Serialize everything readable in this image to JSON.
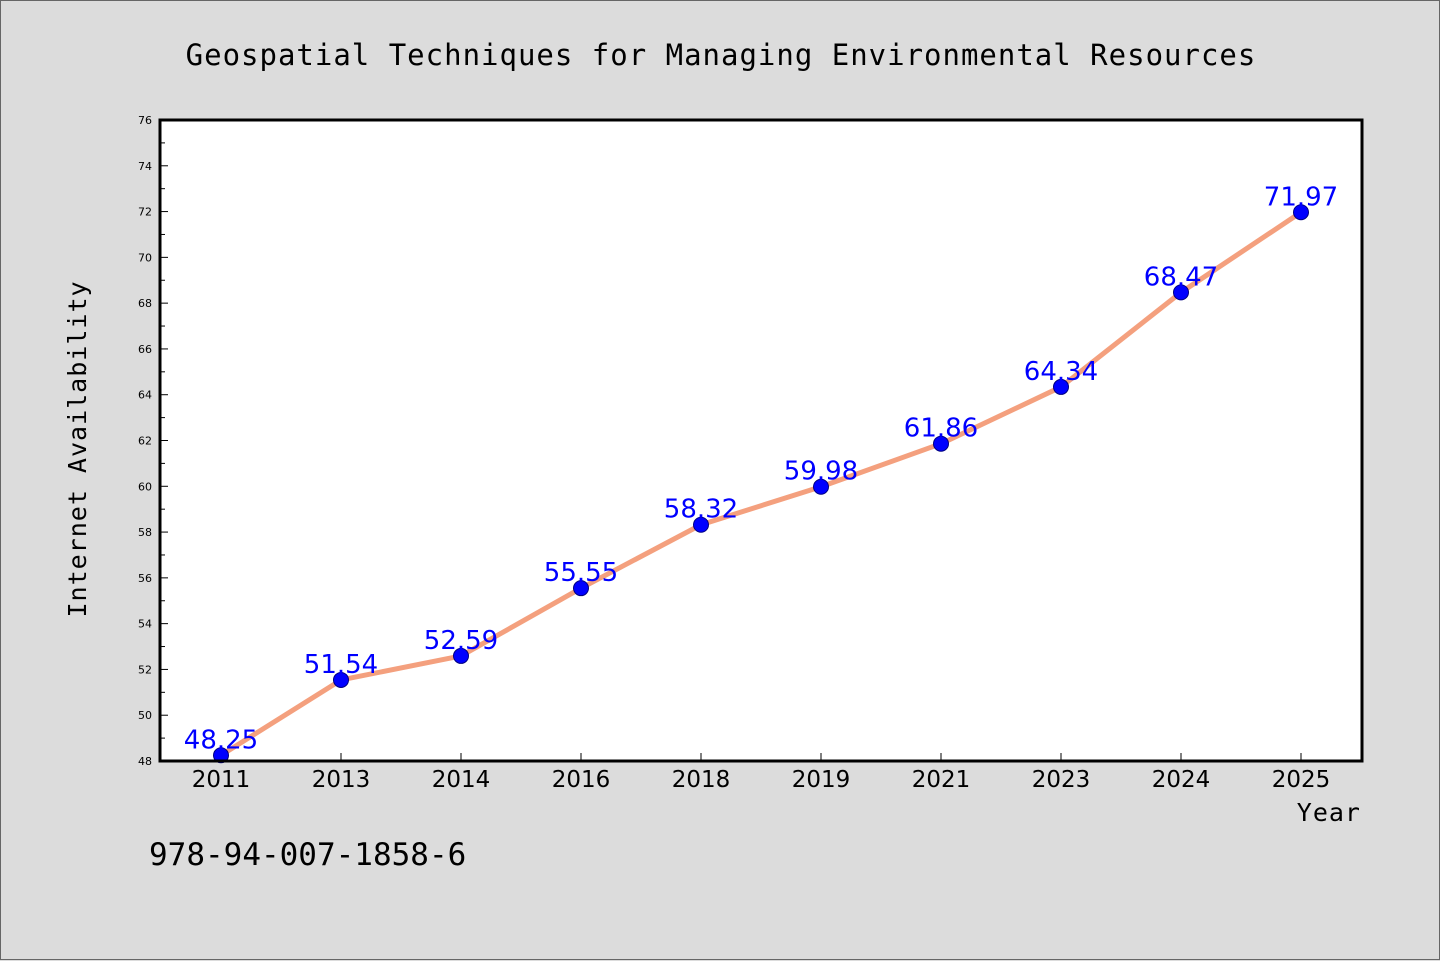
{
  "chart_data": {
    "type": "line",
    "title": "Geospatial Techniques for Managing Environmental Resources",
    "xlabel": "Year",
    "ylabel": "Internet Availability",
    "categories": [
      "2011",
      "2013",
      "2014",
      "2016",
      "2018",
      "2019",
      "2021",
      "2023",
      "2024",
      "2025"
    ],
    "series": [
      {
        "values": [
          48.25,
          51.54,
          52.59,
          55.55,
          58.32,
          59.98,
          61.86,
          64.34,
          68.47,
          71.97
        ],
        "labels": [
          "48.25",
          "51.54",
          "52.59",
          "55.55",
          "58.32",
          "59.98",
          "61.86",
          "64.34",
          "68.47",
          "71.97"
        ]
      }
    ],
    "ylim": [
      48,
      76
    ],
    "yticks": [
      "48",
      "50",
      "52",
      "54",
      "56",
      "58",
      "60",
      "62",
      "64",
      "66",
      "68",
      "70",
      "72",
      "74",
      "76"
    ],
    "grid": false,
    "line_color": "#f4a07e",
    "marker_color": "#0000ff",
    "label_color": "#0000ff"
  },
  "footer": {
    "text": "978-94-007-1858-6"
  }
}
